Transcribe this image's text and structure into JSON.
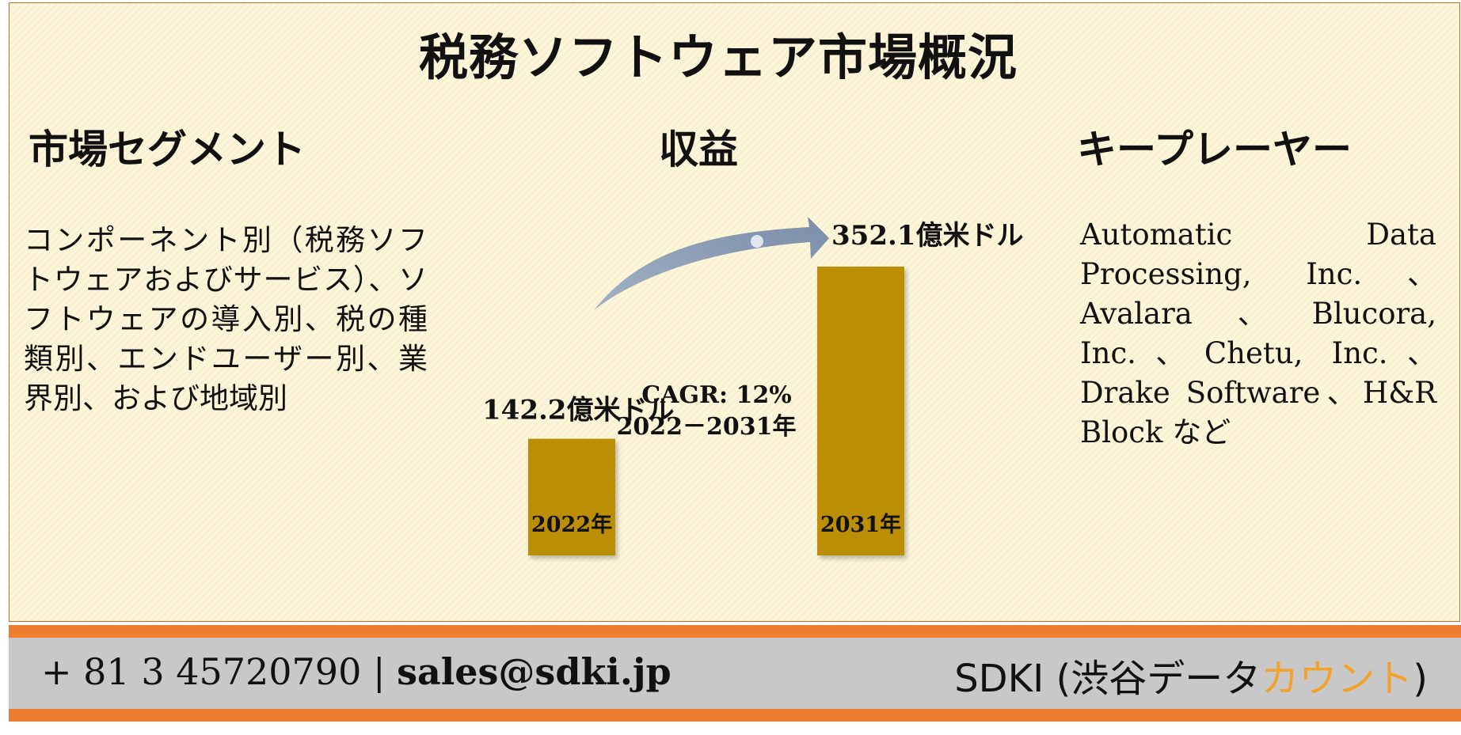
{
  "title": "税務ソフトウェア市場概況",
  "sections": {
    "segments": {
      "heading": "市場セグメント",
      "text": "コンポーネント別（税務ソフトウェアおよびサービス）、ソフトウェアの導入別、税の種類別、エンドユーザー別、業界別、および地域別"
    },
    "revenue": {
      "heading": "収益"
    },
    "players": {
      "heading": "キープレーヤー",
      "text": "Automatic Data Processing, Inc.、Avalara、Blucora, Inc.、Chetu, Inc.、Drake Software、H&R Block など"
    }
  },
  "chart_data": {
    "type": "bar",
    "categories": [
      "2022年",
      "2031年"
    ],
    "values": [
      142.2,
      352.1
    ],
    "value_labels": [
      "142.2億米ドル",
      "352.1億米ドル"
    ],
    "unit": "億米ドル",
    "annotation": {
      "line1": "CAGR: 12%",
      "line2": "2022－2031年"
    },
    "colors": {
      "bar": "#bb8e03",
      "arrow": "#8496ae"
    }
  },
  "footer": {
    "phone": "+ 81 3 45720790",
    "separator": "|",
    "email": "sales@sdki.jp",
    "brand_prefix": "SDKI (渋谷データ",
    "brand_accent": "カウント",
    "brand_suffix": ")",
    "colors": {
      "band": "#ed7d31",
      "panel": "#c8c8c8",
      "accent": "#f2a12c"
    }
  }
}
